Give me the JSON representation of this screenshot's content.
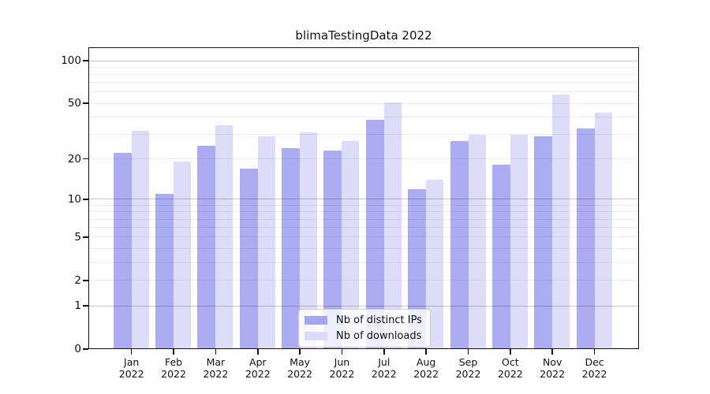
{
  "chart_data": {
    "type": "bar",
    "title": "blimaTestingData 2022",
    "categories": [
      "Jan",
      "Feb",
      "Mar",
      "Apr",
      "May",
      "Jun",
      "Jul",
      "Aug",
      "Sep",
      "Oct",
      "Nov",
      "Dec"
    ],
    "year_label": "2022",
    "series": [
      {
        "name": "Nb of distinct IPs",
        "color": "#a5a5f1",
        "values": [
          22,
          11,
          25,
          17,
          24,
          23,
          38,
          12,
          27,
          18,
          29,
          33
        ]
      },
      {
        "name": "Nb of downloads",
        "color": "#dadaf9",
        "values": [
          32,
          19,
          35,
          29,
          31,
          27,
          51,
          14,
          30,
          30,
          58,
          43
        ]
      }
    ],
    "y_ticks": [
      0,
      1,
      2,
      5,
      10,
      20,
      50,
      100
    ],
    "y_scale": "log(x+1)",
    "ylim": [
      0,
      124
    ],
    "grid": true,
    "legend_position": "bottom-center"
  }
}
